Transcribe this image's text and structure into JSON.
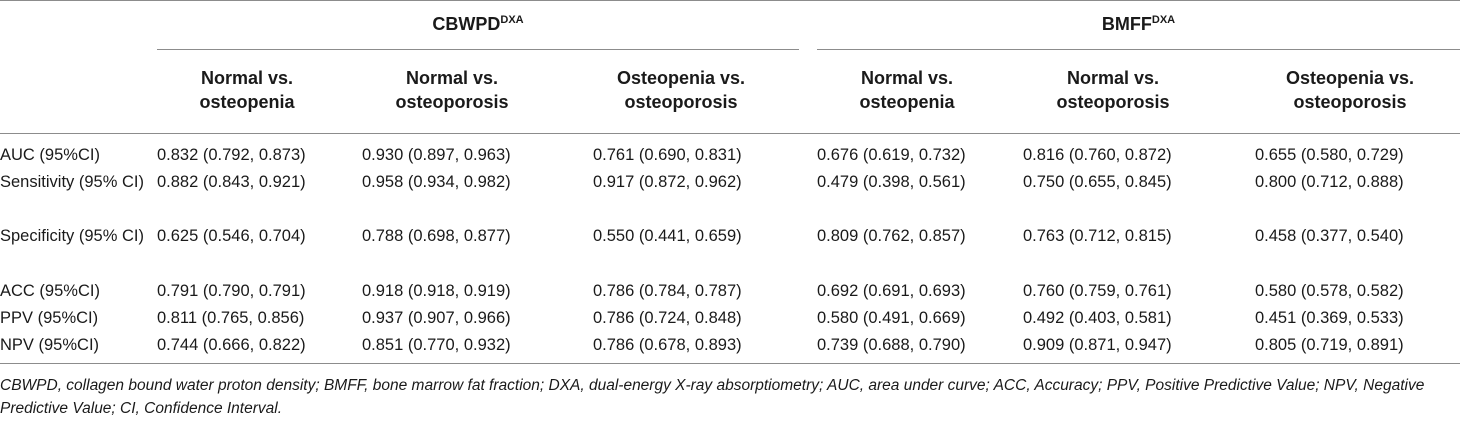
{
  "groups": [
    {
      "name": "CBWPD",
      "sup": "DXA"
    },
    {
      "name": "BMFF",
      "sup": "DXA"
    }
  ],
  "subheaders": [
    {
      "line1": "Normal vs.",
      "line2": "osteopenia"
    },
    {
      "line1": "Normal vs.",
      "line2": "osteoporosis"
    },
    {
      "line1": "Osteopenia vs.",
      "line2": "osteoporosis"
    },
    {
      "line1": "Normal vs.",
      "line2": "osteopenia"
    },
    {
      "line1": "Normal vs.",
      "line2": "osteoporosis"
    },
    {
      "line1": "Osteopenia vs.",
      "line2": "osteoporosis"
    }
  ],
  "rows": [
    {
      "label": "AUC (95%CI)",
      "cells": [
        "0.832 (0.792, 0.873)",
        "0.930 (0.897, 0.963)",
        "0.761 (0.690, 0.831)",
        "0.676 (0.619, 0.732)",
        "0.816 (0.760, 0.872)",
        "0.655 (0.580, 0.729)"
      ]
    },
    {
      "label": "Sensitivity (95% CI)",
      "cells": [
        "0.882 (0.843, 0.921)",
        "0.958 (0.934, 0.982)",
        "0.917 (0.872, 0.962)",
        "0.479 (0.398, 0.561)",
        "0.750 (0.655, 0.845)",
        "0.800 (0.712, 0.888)"
      ]
    },
    {
      "label": "Specificity (95% CI)",
      "cells": [
        "0.625 (0.546, 0.704)",
        "0.788 (0.698, 0.877)",
        "0.550 (0.441, 0.659)",
        "0.809 (0.762, 0.857)",
        "0.763 (0.712, 0.815)",
        "0.458 (0.377, 0.540)"
      ]
    },
    {
      "label": "ACC (95%CI)",
      "cells": [
        "0.791 (0.790, 0.791)",
        "0.918 (0.918, 0.919)",
        "0.786 (0.784, 0.787)",
        "0.692 (0.691, 0.693)",
        "0.760 (0.759, 0.761)",
        "0.580 (0.578, 0.582)"
      ]
    },
    {
      "label": "PPV (95%CI)",
      "cells": [
        "0.811 (0.765, 0.856)",
        "0.937 (0.907, 0.966)",
        "0.786 (0.724, 0.848)",
        "0.580 (0.491, 0.669)",
        "0.492 (0.403, 0.581)",
        "0.451 (0.369, 0.533)"
      ]
    },
    {
      "label": "NPV (95%CI)",
      "cells": [
        "0.744 (0.666, 0.822)",
        "0.851 (0.770, 0.932)",
        "0.786 (0.678, 0.893)",
        "0.739 (0.688, 0.790)",
        "0.909 (0.871, 0.947)",
        "0.805 (0.719, 0.891)"
      ]
    }
  ],
  "footnote": "CBWPD, collagen bound water proton density; BMFF, bone marrow fat fraction; DXA, dual-energy X-ray absorptiometry; AUC, area under curve; ACC, Accuracy; PPV, Positive Predictive Value; NPV, Negative Predictive Value; CI, Confidence Interval."
}
